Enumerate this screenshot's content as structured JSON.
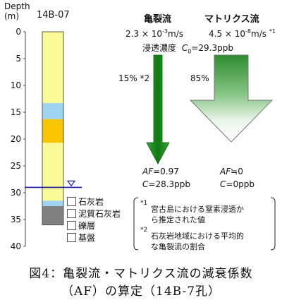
{
  "axis": {
    "title_line1": "Depth",
    "title_line2": "(m)",
    "ticks": [
      "0",
      "5",
      "10",
      "15",
      "20",
      "25",
      "30",
      "35",
      "40"
    ]
  },
  "borehole": {
    "name": "14B-07",
    "water_level_depth_m": 29,
    "layers": [
      {
        "from_m": 0,
        "to_m": 13.3,
        "type": "limestone",
        "color": "#fafa96"
      },
      {
        "from_m": 13.3,
        "to_m": 16.3,
        "type": "gravel",
        "color": "#9fd3f2"
      },
      {
        "from_m": 16.3,
        "to_m": 20.7,
        "type": "muddy_limestone",
        "color": "#f8c400"
      },
      {
        "from_m": 20.7,
        "to_m": 31.5,
        "type": "limestone",
        "color": "#fafa96"
      },
      {
        "from_m": 31.5,
        "to_m": 32.5,
        "type": "gravel",
        "color": "#9fd3f2"
      },
      {
        "from_m": 32.5,
        "to_m": 36,
        "type": "basement",
        "color": "#808080"
      }
    ]
  },
  "legend": [
    {
      "label": "石灰岩",
      "color": "#fafa96"
    },
    {
      "label": "泥質石灰岩",
      "color": "#f8c400"
    },
    {
      "label": "礫層",
      "color": "#9fd3f2"
    },
    {
      "label": "基盤",
      "color": "#808080"
    }
  ],
  "crack_flow": {
    "title": "亀裂流",
    "velocity": "2.3 × 10",
    "velocity_exp": "-3",
    "velocity_unit": "m/s",
    "fraction": "15% *2",
    "af_label": "AF",
    "af_value": "=0.97",
    "c_label": "C",
    "c_value": "=28.3ppb",
    "color": "#1a8a1a"
  },
  "matrix_flow": {
    "title": "マトリクス流",
    "velocity": "4.5 × 10",
    "velocity_exp": "-8",
    "velocity_unit": "m/s",
    "velocity_note": "*1",
    "fraction": "85%",
    "af_label": "AF",
    "af_value": "≒0",
    "c_label": "C",
    "c_value": "=0ppb",
    "color": "#2f9a2f"
  },
  "infiltration": {
    "label": "浸透濃度",
    "c0_label": "C",
    "c0_sub": "0",
    "c0_value": "=29.3ppb"
  },
  "notes": [
    {
      "mark": "*1",
      "line1": "宮古島における窒素浸透か",
      "line2": "ら推定された値"
    },
    {
      "mark": "*2",
      "line1": "石灰岩地域における平均的",
      "line2": "な亀裂流の割合"
    }
  ],
  "caption": {
    "line1": "図4：亀裂流・マトリクス流の減衰係数",
    "line2": "（AF）の算定（14B-7孔）"
  }
}
